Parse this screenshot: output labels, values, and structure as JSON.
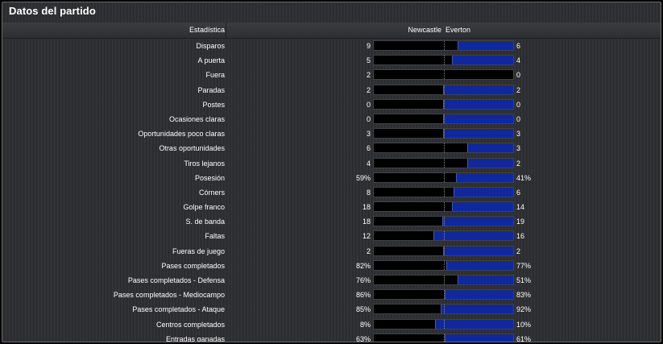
{
  "title": "Datos del partido",
  "header": {
    "stat": "Estadística",
    "home": "Newcastle",
    "away": "Everton"
  },
  "colors": {
    "home_bar": "#000000",
    "away_bar": "#10289c",
    "background": "#2c2e31"
  },
  "stats": [
    {
      "label": "Disparos",
      "home": "9",
      "away": "6",
      "away_share": 0.4
    },
    {
      "label": "A puerta",
      "home": "5",
      "away": "4",
      "away_share": 0.44
    },
    {
      "label": "Fuera",
      "home": "2",
      "away": "0",
      "away_share": 0.0
    },
    {
      "label": "Paradas",
      "home": "2",
      "away": "2",
      "away_share": 0.5
    },
    {
      "label": "Postes",
      "home": "0",
      "away": "0",
      "away_share": 0.5
    },
    {
      "label": "Ocasiones claras",
      "home": "0",
      "away": "0",
      "away_share": 0.5
    },
    {
      "label": "Oportunidades poco claras",
      "home": "3",
      "away": "3",
      "away_share": 0.5
    },
    {
      "label": "Otras oportunidades",
      "home": "6",
      "away": "3",
      "away_share": 0.33
    },
    {
      "label": "Tiros lejanos",
      "home": "4",
      "away": "2",
      "away_share": 0.33
    },
    {
      "label": "Posesión",
      "home": "59%",
      "away": "41%",
      "away_share": 0.41
    },
    {
      "label": "Córners",
      "home": "8",
      "away": "6",
      "away_share": 0.43
    },
    {
      "label": "Golpe franco",
      "home": "18",
      "away": "14",
      "away_share": 0.44
    },
    {
      "label": "S. de banda",
      "home": "18",
      "away": "19",
      "away_share": 0.51
    },
    {
      "label": "Faltas",
      "home": "12",
      "away": "16",
      "away_share": 0.57
    },
    {
      "label": "Fueras de juego",
      "home": "2",
      "away": "2",
      "away_share": 0.5
    },
    {
      "label": "Pases completados",
      "home": "82%",
      "away": "77%",
      "away_share": 0.48
    },
    {
      "label": "Pases completados - Defensa",
      "home": "76%",
      "away": "51%",
      "away_share": 0.4
    },
    {
      "label": "Pases completados - Mediocampo",
      "home": "86%",
      "away": "83%",
      "away_share": 0.49
    },
    {
      "label": "Pases completados - Ataque",
      "home": "85%",
      "away": "92%",
      "away_share": 0.52
    },
    {
      "label": "Centros completados",
      "home": "8%",
      "away": "10%",
      "away_share": 0.56
    },
    {
      "label": "Entradas ganadas",
      "home": "63%",
      "away": "61%",
      "away_share": 0.49
    }
  ]
}
